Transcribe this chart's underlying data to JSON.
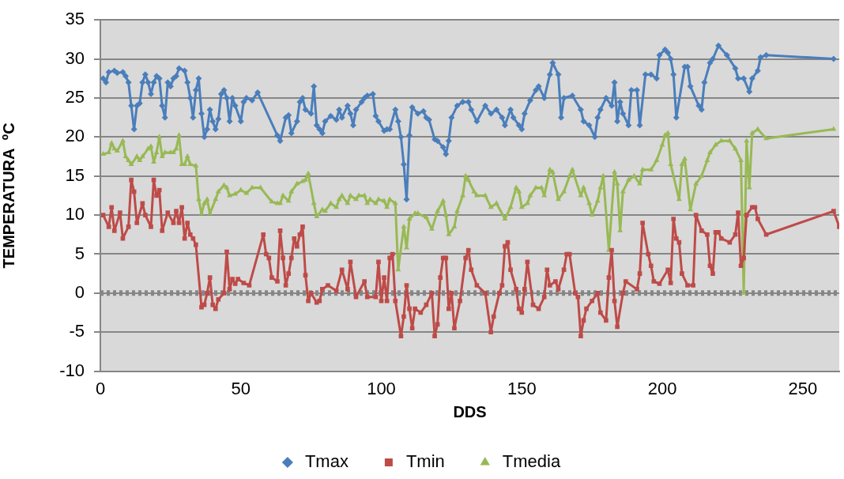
{
  "chart_data": {
    "type": "line",
    "xlabel": "DDS",
    "ylabel": "TEMPERATURA  ºC",
    "xlim": [
      0,
      263
    ],
    "xticks": [
      0,
      50,
      100,
      150,
      200,
      250
    ],
    "ylim": [
      -10,
      35
    ],
    "yticks": [
      -10,
      -5,
      0,
      5,
      10,
      15,
      20,
      25,
      30,
      35
    ],
    "grid": "y",
    "legend": "bottom",
    "line_style": "solid",
    "ref_lines": [
      {
        "axis": "y",
        "value": 0,
        "color": "#868686",
        "line_style": "dashed"
      }
    ],
    "series": [
      {
        "name": "Tmax",
        "color": "#4a7ebb",
        "marker": "diamond",
        "x": [
          1,
          2,
          3,
          5,
          6,
          8,
          9,
          10,
          11,
          12,
          13,
          14,
          15,
          16,
          17,
          18,
          19,
          20,
          21,
          22,
          23,
          24,
          25,
          26,
          27,
          28,
          30,
          31,
          32,
          33,
          34,
          35,
          36,
          37,
          38,
          39,
          40,
          41,
          42,
          43,
          44,
          45,
          46,
          47,
          48,
          50,
          51,
          52,
          54,
          56,
          63,
          64,
          66,
          67,
          68,
          70,
          71,
          72,
          73,
          75,
          76,
          77,
          78,
          79,
          80,
          82,
          84,
          85,
          86,
          88,
          89,
          90,
          91,
          93,
          94,
          95,
          97,
          98,
          99,
          101,
          102,
          103,
          105,
          106,
          107,
          108,
          109,
          110,
          111,
          113,
          115,
          116,
          117,
          119,
          120,
          122,
          123,
          124,
          125,
          127,
          129,
          131,
          132,
          134,
          137,
          139,
          141,
          143,
          144,
          146,
          147,
          149,
          150,
          151,
          153,
          155,
          156,
          158,
          160,
          161,
          163,
          164,
          165,
          168,
          171,
          172,
          174,
          176,
          177,
          178,
          180,
          182,
          183,
          184,
          185,
          186,
          188,
          189,
          191,
          192,
          194,
          196,
          198,
          199,
          201,
          202,
          203,
          204,
          205,
          208,
          209,
          210,
          213,
          214,
          215,
          217,
          218,
          220,
          223,
          226,
          227,
          229,
          231,
          232,
          234,
          235,
          237,
          261
        ],
        "values": [
          27.5,
          27,
          28.3,
          28.5,
          28.2,
          28.3,
          27.8,
          27,
          24,
          21,
          24,
          24.3,
          27,
          28,
          27,
          25.5,
          27,
          27.8,
          27.5,
          24,
          22.5,
          27,
          26.5,
          27.5,
          27.8,
          28.8,
          28.5,
          27,
          25,
          22.5,
          26,
          27.5,
          23,
          20,
          21,
          23.5,
          22,
          21,
          22.3,
          25.5,
          26,
          25,
          22,
          25,
          24,
          22,
          24.5,
          25,
          24.7,
          25.7,
          20.2,
          19.5,
          22.5,
          22.8,
          20.5,
          22,
          24.5,
          25,
          23.5,
          23,
          26.5,
          21.5,
          21,
          20.5,
          22,
          22.7,
          22.2,
          23.5,
          22.5,
          24,
          23,
          21.5,
          23.5,
          24.5,
          25,
          25.3,
          25.5,
          22.7,
          22,
          20.8,
          21,
          21,
          23.5,
          22,
          20,
          16.5,
          12,
          20.2,
          23.8,
          23,
          23.3,
          22.5,
          22.2,
          19.7,
          19.5,
          18.7,
          17.8,
          19.5,
          22.5,
          24,
          24.5,
          24.5,
          23.5,
          22,
          24,
          23,
          23.5,
          22.5,
          21.5,
          23.5,
          22.5,
          21.5,
          21,
          23,
          24.7,
          26,
          26.5,
          25,
          28,
          29.5,
          28,
          22.5,
          25,
          25.3,
          23.5,
          22,
          21.5,
          20,
          22.5,
          23.5,
          25,
          24,
          27,
          22,
          24.5,
          23,
          21.5,
          26,
          26,
          21.5,
          28,
          28,
          27.5,
          30.5,
          31.2,
          30.8,
          30,
          28,
          22.5,
          29,
          29,
          26.5,
          24,
          23.5,
          27,
          29.5,
          30,
          31.7,
          30.5,
          28.8,
          27.5,
          27.5,
          25.8,
          27.5,
          28.5,
          30.2,
          30.5,
          30
        ]
      },
      {
        "name": "Tmin",
        "color": "#be4b48",
        "marker": "square",
        "x": [
          1,
          3,
          4,
          5,
          7,
          8,
          10,
          11,
          12,
          13,
          15,
          16,
          18,
          19,
          20,
          21,
          22,
          24,
          26,
          27,
          28,
          29,
          30,
          31,
          32,
          33,
          34,
          36,
          37,
          38,
          39,
          40,
          41,
          42,
          44,
          45,
          46,
          47,
          48,
          49,
          51,
          53,
          58,
          59,
          60,
          61,
          63,
          64,
          65,
          66,
          67,
          68,
          69,
          70,
          71,
          72,
          73,
          74,
          75,
          77,
          78,
          79,
          81,
          84,
          86,
          88,
          89,
          91,
          94,
          95,
          98,
          99,
          100,
          101,
          102,
          103,
          104,
          105,
          107,
          108,
          109,
          110,
          111,
          112,
          114,
          116,
          118,
          119,
          120,
          121,
          122,
          123,
          124,
          125,
          126,
          128,
          130,
          131,
          132,
          134,
          137,
          139,
          140,
          142,
          143,
          144,
          145,
          146,
          148,
          149,
          150,
          151,
          152,
          154,
          156,
          158,
          159,
          160,
          162,
          163,
          165,
          166,
          167,
          169,
          170,
          171,
          172,
          173,
          175,
          177,
          178,
          180,
          181,
          182,
          183,
          184,
          186,
          187,
          191,
          192,
          193,
          195,
          196,
          197,
          199,
          202,
          203,
          204,
          205,
          206,
          207,
          209,
          211,
          212,
          214,
          216,
          217,
          218,
          219,
          220,
          221,
          224,
          226,
          227,
          228,
          229,
          230,
          232,
          233,
          234,
          237,
          261,
          263
        ],
        "values": [
          10,
          8.5,
          11,
          8,
          10.3,
          7,
          8.5,
          14.5,
          13,
          9,
          11.5,
          10,
          8.5,
          14.5,
          12.5,
          13.2,
          8,
          10.3,
          9,
          10.5,
          9,
          11,
          7,
          9,
          7.5,
          7,
          6.2,
          -1.8,
          -1.5,
          0,
          2,
          -1.5,
          -2,
          -0.8,
          0,
          5.3,
          0.5,
          1.8,
          1.2,
          1.8,
          1.3,
          1,
          7.5,
          5,
          4.5,
          2,
          1.5,
          8,
          4.5,
          1,
          2.5,
          4.5,
          7,
          6,
          7.5,
          8.5,
          2.3,
          -1,
          0,
          -1.2,
          -1,
          0.5,
          1,
          0.3,
          3,
          0.5,
          4,
          -0.5,
          1.5,
          -0.5,
          -0.5,
          4,
          -1,
          2,
          -1,
          4.5,
          5,
          -1,
          -5.5,
          -3,
          1,
          -2,
          -4.5,
          -2,
          -2.5,
          -1.5,
          0,
          -5.5,
          -4,
          2,
          4.5,
          4.5,
          -2,
          0,
          -4.5,
          -1,
          4.5,
          5.5,
          3,
          1,
          0,
          -5,
          -3,
          0,
          1,
          6,
          6.5,
          3,
          0.5,
          -2,
          -2.5,
          0.5,
          4,
          -1.5,
          -2,
          -0.5,
          3,
          1,
          1.5,
          0.5,
          3,
          5,
          5,
          0,
          -0.5,
          -5.5,
          -3.5,
          -2,
          -1,
          0,
          -2.5,
          -3.5,
          2,
          5.5,
          -1,
          -4.3,
          0,
          1.5,
          0.5,
          2.5,
          9,
          5,
          3.5,
          1.5,
          1.2,
          3,
          1.3,
          9.5,
          7,
          6.5,
          2.5,
          1,
          1,
          10,
          8,
          7.5,
          3.5,
          2.5,
          7.8,
          7.8,
          7,
          6.5,
          7.5,
          10.3,
          3.5,
          4.5,
          10,
          11,
          11,
          9.5,
          7.5,
          10.5,
          8.5
        ]
      },
      {
        "name": "Tmedia",
        "color": "#98b954",
        "marker": "triangle",
        "x": [
          1,
          3,
          4,
          5,
          6,
          8,
          9,
          10,
          11,
          13,
          14,
          15,
          17,
          18,
          19,
          20,
          21,
          22,
          23,
          25,
          26,
          27,
          28,
          29,
          30,
          31,
          32,
          34,
          35,
          36,
          37,
          38,
          39,
          41,
          42,
          44,
          45,
          46,
          48,
          50,
          52,
          54,
          57,
          61,
          63,
          64,
          65,
          67,
          68,
          70,
          72,
          73,
          74,
          76,
          77,
          79,
          80,
          82,
          84,
          85,
          86,
          88,
          89,
          91,
          92,
          94,
          95,
          96,
          98,
          99,
          101,
          102,
          103,
          105,
          106,
          108,
          109,
          110,
          112,
          113,
          116,
          118,
          120,
          122,
          123,
          124,
          126,
          127,
          129,
          130,
          131,
          133,
          134,
          137,
          139,
          141,
          144,
          146,
          148,
          149,
          150,
          152,
          153,
          155,
          157,
          158,
          160,
          161,
          163,
          165,
          167,
          168,
          171,
          172,
          174,
          175,
          177,
          178,
          179,
          181,
          183,
          184,
          185,
          186,
          188,
          190,
          192,
          193,
          196,
          198,
          200,
          201,
          202,
          203,
          206,
          207,
          208,
          210,
          212,
          214,
          216,
          217,
          219,
          221,
          224,
          226,
          228,
          229,
          230,
          231,
          232,
          234,
          237,
          261
        ],
        "values": [
          17.8,
          18,
          19.2,
          18.5,
          18.2,
          19.5,
          17.5,
          17,
          16.5,
          17.5,
          17,
          17.5,
          18.5,
          18.8,
          16.8,
          18,
          20,
          17.5,
          18,
          18,
          18,
          18.5,
          20.2,
          16.5,
          16.5,
          17.5,
          16.5,
          16.3,
          12,
          10.2,
          11.5,
          12,
          10.2,
          12,
          13,
          13.8,
          13.5,
          12.5,
          12.7,
          13.2,
          12.8,
          13.5,
          13.5,
          11.7,
          11.5,
          11.5,
          12.5,
          11.8,
          13,
          14,
          14.3,
          14.5,
          15.3,
          11.5,
          9.8,
          10.7,
          10.5,
          11.5,
          11,
          12,
          12.5,
          11.5,
          12.5,
          12,
          12.5,
          12.5,
          11.5,
          12,
          11.5,
          12,
          11.8,
          11,
          12,
          11.5,
          3,
          8.5,
          5.8,
          9.5,
          10.2,
          10.2,
          9.7,
          8.2,
          10.5,
          11.8,
          10,
          7.5,
          8.5,
          10.5,
          12.5,
          15,
          14.5,
          13,
          12.5,
          12.5,
          11,
          11.5,
          9.5,
          11,
          13.5,
          13,
          11,
          11.5,
          12.5,
          13.5,
          13.5,
          12.5,
          15.8,
          15.5,
          12,
          13,
          15,
          15.8,
          12.5,
          13.5,
          11.5,
          10,
          11.8,
          13.5,
          15,
          5.5,
          15.5,
          14,
          8,
          13,
          14.5,
          15,
          14,
          15.8,
          15.8,
          17,
          19,
          20.2,
          20.5,
          16.5,
          12,
          16.5,
          17.2,
          10.7,
          14,
          15,
          17,
          18,
          19,
          19.5,
          19.5,
          18.5,
          17,
          0,
          19.5,
          13.5,
          20.5,
          21,
          19.8,
          21
        ]
      }
    ]
  }
}
